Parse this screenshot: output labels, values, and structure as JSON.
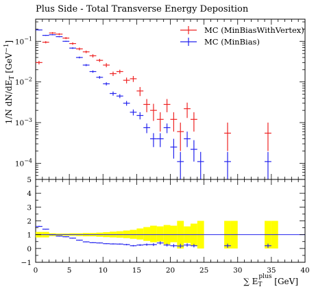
{
  "chart_data": [
    {
      "type": "scatter",
      "title": "Plus Side - Total Transverse Energy Deposition",
      "ylabel": "1/N dN/dE_T [GeV^-1]",
      "ylabel_parts": {
        "main": "1/N dN/dE",
        "sub": "T",
        "unit": "[GeV",
        "sup": "−1",
        "close": "]"
      },
      "log_y": true,
      "xlim": [
        0,
        40
      ],
      "ylim": [
        4e-05,
        0.35
      ],
      "ytick_labels": [
        {
          "value": 0.0001,
          "base": "10",
          "exp": "−4"
        },
        {
          "value": 0.001,
          "base": "10",
          "exp": "−3"
        },
        {
          "value": 0.01,
          "base": "10",
          "exp": "−2"
        },
        {
          "value": 0.1,
          "base": "10",
          "exp": "−1"
        }
      ],
      "legend_position": "top-right",
      "series": [
        {
          "name": "MC (MinBiasWithVertex)",
          "color": "#ee2222",
          "x": [
            0.5,
            1.5,
            2.5,
            3.5,
            4.5,
            5.5,
            6.5,
            7.5,
            8.5,
            9.5,
            10.5,
            11.5,
            12.5,
            13.5,
            14.5,
            15.5,
            16.5,
            17.5,
            18.5,
            19.5,
            20.5,
            21.5,
            22.5,
            23.5,
            28.5,
            34.5
          ],
          "y": [
            0.03,
            0.095,
            0.16,
            0.15,
            0.12,
            0.088,
            0.065,
            0.055,
            0.044,
            0.034,
            0.026,
            0.016,
            0.018,
            0.011,
            0.012,
            0.006,
            0.0028,
            0.002,
            0.0012,
            0.0028,
            0.0012,
            0.0006,
            0.0022,
            0.0012,
            0.00055,
            0.00055
          ],
          "yerr_low": [
            0.003,
            0.006,
            0.008,
            0.008,
            0.007,
            0.006,
            0.005,
            0.004,
            0.004,
            0.003,
            0.003,
            0.002,
            0.002,
            0.0018,
            0.002,
            0.0015,
            0.001,
            0.0009,
            0.0006,
            0.001,
            0.0006,
            0.0004,
            0.0009,
            0.0006,
            0.00035,
            0.00035
          ],
          "yerr_high": [
            0.003,
            0.006,
            0.008,
            0.008,
            0.007,
            0.006,
            0.005,
            0.004,
            0.004,
            0.003,
            0.003,
            0.002,
            0.002,
            0.0018,
            0.002,
            0.0015,
            0.001,
            0.0009,
            0.0006,
            0.001,
            0.0006,
            0.0004,
            0.0009,
            0.0006,
            0.00045,
            0.00045
          ]
        },
        {
          "name": "MC (MinBias)",
          "color": "#2222ee",
          "x": [
            0.5,
            1.5,
            2.5,
            3.5,
            4.5,
            5.5,
            6.5,
            7.5,
            8.5,
            9.5,
            10.5,
            11.5,
            12.5,
            13.5,
            14.5,
            15.5,
            16.5,
            17.5,
            18.5,
            19.5,
            20.5,
            21.5,
            22.5,
            23.5,
            24.5,
            28.5,
            34.5
          ],
          "y": [
            0.19,
            0.14,
            0.145,
            0.13,
            0.1,
            0.068,
            0.04,
            0.026,
            0.018,
            0.013,
            0.009,
            0.0052,
            0.0045,
            0.003,
            0.0018,
            0.0015,
            0.00075,
            0.0004,
            0.0004,
            0.00075,
            0.00025,
            0.00011,
            0.0004,
            0.00022,
            0.00011,
            0.00011,
            0.00011
          ],
          "yerr_low": [
            0.005,
            0.004,
            0.004,
            0.004,
            0.003,
            0.003,
            0.002,
            0.0015,
            0.0012,
            0.001,
            0.0008,
            0.0006,
            0.0005,
            0.0004,
            0.0003,
            0.0003,
            0.0002,
            0.00015,
            0.00015,
            0.0002,
            0.00012,
            7e-05,
            0.00015,
            0.00011,
            7e-05,
            7e-05,
            7e-05
          ],
          "yerr_high": [
            0.005,
            0.004,
            0.004,
            0.004,
            0.003,
            0.003,
            0.002,
            0.0015,
            0.0012,
            0.001,
            0.0008,
            0.0006,
            0.0005,
            0.0004,
            0.0003,
            0.0003,
            0.0002,
            0.00015,
            0.00015,
            0.0002,
            0.00015,
            8e-05,
            0.0002,
            0.00015,
            8e-05,
            8e-05,
            8e-05
          ]
        }
      ]
    },
    {
      "type": "scatter",
      "title": "",
      "xlabel": "ΣE_T^plus [GeV]",
      "xlabel_parts": {
        "sigma": "∑",
        "e": "E",
        "sub": "T",
        "sup": "plus",
        "unit": "[GeV]"
      },
      "xlim": [
        0,
        40
      ],
      "ylim": [
        -1,
        5
      ],
      "xticks": [
        0,
        5,
        10,
        15,
        20,
        25,
        30,
        35,
        40
      ],
      "yticks": [
        -1,
        0,
        1,
        2,
        3,
        4,
        5
      ],
      "reference_line": 1,
      "reference_color": "#2222ee",
      "band_color": "#ffff00",
      "band": {
        "x": [
          0,
          1,
          2,
          3,
          4,
          5,
          6,
          7,
          8,
          9,
          10,
          11,
          12,
          13,
          14,
          15,
          16,
          17,
          18,
          19,
          20,
          21,
          22,
          23,
          24,
          28,
          29,
          34,
          35
        ],
        "lo": [
          0.8,
          0.8,
          0.9,
          0.92,
          0.92,
          0.92,
          0.9,
          0.88,
          0.88,
          0.85,
          0.82,
          0.8,
          0.78,
          0.75,
          0.7,
          0.65,
          0.55,
          0.45,
          0.5,
          0.3,
          0.45,
          0.0,
          0.4,
          0.2,
          0.0,
          0.0,
          0.0,
          0.0,
          0.0
        ],
        "hi": [
          1.2,
          1.2,
          1.1,
          1.08,
          1.08,
          1.1,
          1.1,
          1.12,
          1.12,
          1.15,
          1.18,
          1.22,
          1.25,
          1.3,
          1.35,
          1.45,
          1.55,
          1.65,
          1.6,
          1.7,
          1.65,
          2.0,
          1.6,
          1.8,
          2.0,
          2.0,
          2.0,
          2.0,
          2.0
        ]
      },
      "series": [
        {
          "name": "MC (MinBias) / MC (MinBiasWithVertex)",
          "color": "#2222ee",
          "x": [
            0.5,
            1.5,
            2.5,
            3.5,
            4.5,
            5.5,
            6.5,
            7.5,
            8.5,
            9.5,
            10.5,
            11.5,
            12.5,
            13.5,
            14.5,
            15.5,
            16.5,
            17.5,
            18.5,
            19.5,
            20.5,
            21.5,
            22.5,
            23.5,
            28.5,
            34.5
          ],
          "y": [
            1.6,
            1.4,
            1.0,
            0.9,
            0.85,
            0.75,
            0.6,
            0.48,
            0.42,
            0.4,
            0.35,
            0.33,
            0.32,
            0.28,
            0.2,
            0.25,
            0.28,
            0.28,
            0.4,
            0.25,
            0.2,
            0.18,
            0.25,
            0.2,
            0.2,
            0.2
          ],
          "yerr": [
            0.04,
            0.03,
            0.03,
            0.03,
            0.03,
            0.03,
            0.03,
            0.03,
            0.03,
            0.03,
            0.03,
            0.04,
            0.04,
            0.05,
            0.05,
            0.06,
            0.08,
            0.1,
            0.12,
            0.1,
            0.12,
            0.15,
            0.12,
            0.12,
            0.15,
            0.15
          ]
        }
      ]
    }
  ]
}
